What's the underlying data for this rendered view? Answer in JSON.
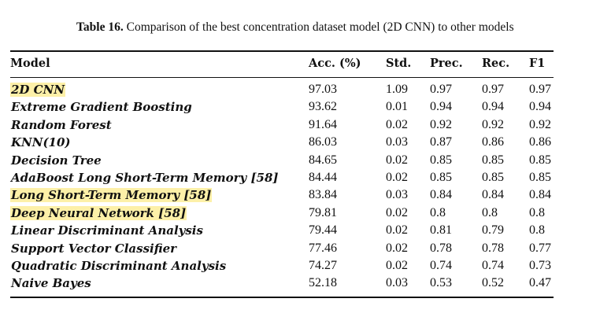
{
  "caption": {
    "label": "Table 16.",
    "text": "Comparison of the best concentration dataset model (2D CNN) to other models"
  },
  "table": {
    "headers": [
      "Model",
      "Acc. (%)",
      "Std.",
      "Prec.",
      "Rec.",
      "F1"
    ],
    "rows": [
      {
        "model": "2D CNN",
        "acc": "97.03",
        "std": "1.09",
        "prec": "0.97",
        "rec": "0.97",
        "f1": "0.97",
        "highlighted": true
      },
      {
        "model": "Extreme Gradient Boosting",
        "acc": "93.62",
        "std": "0.01",
        "prec": "0.94",
        "rec": "0.94",
        "f1": "0.94",
        "highlighted": false
      },
      {
        "model": "Random Forest",
        "acc": "91.64",
        "std": "0.02",
        "prec": "0.92",
        "rec": "0.92",
        "f1": "0.92",
        "highlighted": false
      },
      {
        "model": "KNN(10)",
        "acc": "86.03",
        "std": "0.03",
        "prec": "0.87",
        "rec": "0.86",
        "f1": "0.86",
        "highlighted": false
      },
      {
        "model": "Decision Tree",
        "acc": "84.65",
        "std": "0.02",
        "prec": "0.85",
        "rec": "0.85",
        "f1": "0.85",
        "highlighted": false
      },
      {
        "model": "AdaBoost Long Short-Term Memory [58]",
        "acc": "84.44",
        "std": "0.02",
        "prec": "0.85",
        "rec": "0.85",
        "f1": "0.85",
        "highlighted": false
      },
      {
        "model": "Long Short-Term Memory [58]",
        "acc": "83.84",
        "std": "0.03",
        "prec": "0.84",
        "rec": "0.84",
        "f1": "0.84",
        "highlighted": true
      },
      {
        "model": "Deep Neural Network [58]",
        "acc": "79.81",
        "std": "0.02",
        "prec": "0.8",
        "rec": "0.8",
        "f1": "0.8",
        "highlighted": true
      },
      {
        "model": "Linear Discriminant Analysis",
        "acc": "79.44",
        "std": "0.02",
        "prec": "0.81",
        "rec": "0.79",
        "f1": "0.8",
        "highlighted": false
      },
      {
        "model": "Support Vector Classifier",
        "acc": "77.46",
        "std": "0.02",
        "prec": "0.78",
        "rec": "0.78",
        "f1": "0.77",
        "highlighted": false
      },
      {
        "model": "Quadratic Discriminant Analysis",
        "acc": "74.27",
        "std": "0.02",
        "prec": "0.74",
        "rec": "0.74",
        "f1": "0.73",
        "highlighted": false
      },
      {
        "model": "Naive Bayes",
        "acc": "52.18",
        "std": "0.03",
        "prec": "0.53",
        "rec": "0.52",
        "f1": "0.47",
        "highlighted": false
      }
    ]
  },
  "colors": {
    "highlight": "#fdf0a8",
    "text": "#111111"
  }
}
